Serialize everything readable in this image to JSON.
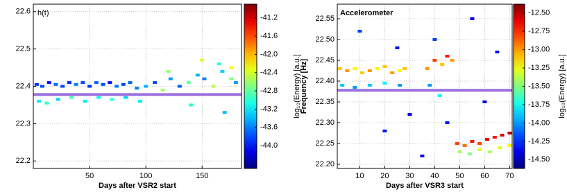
{
  "chart_data": [
    {
      "type": "scatter",
      "title": "h(t)",
      "xlabel": "Days after VSR2 start",
      "colorbar_label": "log₁₀(Energy) [a.u.]",
      "xlim": [
        0,
        185
      ],
      "xticks": [
        50,
        100,
        150
      ],
      "ylim": [
        22.18,
        22.62
      ],
      "yticks": [
        22.2,
        22.3,
        22.4,
        22.5,
        22.6
      ],
      "clim": [
        -44.5,
        -40.9
      ],
      "cticks": [
        -41.2,
        -41.6,
        {
          "value": -42.0,
          "label": "-42.0"
        },
        -42.4,
        -42.8,
        -43.2,
        -43.6,
        {
          "value": -44.0,
          "label": "-44.0"
        }
      ],
      "colormap": "jet",
      "grid": true,
      "hline": {
        "value": 22.378,
        "color": "#9b6fe0"
      },
      "series": [
        {
          "x": [
            3,
            8,
            14,
            20,
            26,
            32,
            38,
            44,
            50,
            56,
            62,
            68,
            74,
            80,
            86,
            5,
            12,
            22,
            34,
            46,
            58,
            70,
            82,
            92,
            100,
            108,
            115,
            122,
            130,
            138,
            146,
            152,
            160,
            168,
            176,
            180,
            120,
            150,
            165,
            176,
            95,
            140,
            170
          ],
          "y": [
            22.405,
            22.4,
            22.41,
            22.405,
            22.4,
            22.41,
            22.405,
            22.41,
            22.4,
            22.41,
            22.405,
            22.41,
            22.4,
            22.405,
            22.41,
            22.36,
            22.355,
            22.365,
            22.37,
            22.36,
            22.37,
            22.365,
            22.37,
            22.395,
            22.4,
            22.41,
            22.39,
            22.42,
            22.4,
            22.41,
            22.43,
            22.42,
            22.4,
            22.44,
            22.42,
            22.41,
            22.44,
            22.47,
            22.46,
            22.45,
            22.36,
            22.35,
            22.33
          ],
          "energy": [
            -43.9,
            -43.8,
            -44.0,
            -43.7,
            -43.8,
            -43.9,
            -43.6,
            -43.8,
            -43.9,
            -43.7,
            -43.8,
            -44.0,
            -43.6,
            -43.8,
            -43.7,
            -43.2,
            -43.0,
            -43.3,
            -42.9,
            -43.2,
            -43.1,
            -43.0,
            -43.3,
            -43.6,
            -43.4,
            -43.8,
            -42.6,
            -43.5,
            -43.7,
            -42.8,
            -43.4,
            -43.6,
            -42.5,
            -43.3,
            -42.7,
            -43.5,
            -42.6,
            -42.4,
            -43.0,
            -42.3,
            -43.2,
            -43.0,
            -43.4
          ]
        }
      ]
    },
    {
      "type": "scatter",
      "title": "Accelerometer",
      "xlabel": "Days after VSR3 start",
      "ylabel": "Frequency [Hz]",
      "colorbar_label": "log₁₀(Energy) [a.u.]",
      "xlim": [
        1,
        71
      ],
      "xticks": [
        10,
        20,
        30,
        40,
        50,
        60,
        70
      ],
      "ylim": [
        22.19,
        22.585
      ],
      "yticks": [
        {
          "value": 22.2,
          "label": "22.20"
        },
        22.25,
        {
          "value": 22.3,
          "label": "22.30"
        },
        22.35,
        {
          "value": 22.4,
          "label": "22.40"
        },
        22.45,
        {
          "value": 22.5,
          "label": "22.50"
        },
        22.55
      ],
      "clim": [
        -14.62,
        -12.38
      ],
      "cticks": [
        {
          "value": -12.5,
          "label": "-12.50"
        },
        -12.75,
        {
          "value": -13.0,
          "label": "-13.00"
        },
        -13.25,
        {
          "value": -13.5,
          "label": "-13.50"
        },
        -13.75,
        {
          "value": -14.0,
          "label": "-14.00"
        },
        -14.25,
        {
          "value": -14.5,
          "label": "-14.50"
        }
      ],
      "colormap": "jet",
      "grid": true,
      "hline": {
        "value": 22.378,
        "color": "#9b6fe0"
      },
      "series": [
        {
          "x": [
            2,
            5,
            8,
            11,
            14,
            17,
            20,
            23,
            26,
            28,
            3,
            8,
            14,
            20,
            26,
            37,
            40,
            43,
            45,
            47,
            38,
            42,
            49,
            52,
            55,
            58,
            61,
            64,
            67,
            70,
            50,
            54,
            58,
            62,
            66,
            70,
            10,
            25,
            40,
            55,
            65,
            30,
            45,
            60,
            20,
            35
          ],
          "y": [
            22.43,
            22.425,
            22.43,
            22.42,
            22.425,
            22.43,
            22.435,
            22.42,
            22.425,
            22.43,
            22.39,
            22.385,
            22.39,
            22.395,
            22.39,
            22.43,
            22.45,
            22.44,
            22.46,
            22.45,
            22.39,
            22.365,
            22.25,
            22.245,
            22.255,
            22.25,
            22.26,
            22.265,
            22.27,
            22.275,
            22.23,
            22.225,
            22.235,
            22.23,
            22.24,
            22.245,
            22.52,
            22.48,
            22.5,
            22.55,
            22.47,
            22.32,
            22.3,
            22.35,
            22.28,
            22.22
          ],
          "energy": [
            -13.1,
            -13.0,
            -13.2,
            -13.1,
            -13.0,
            -13.2,
            -13.1,
            -13.0,
            -13.2,
            -13.1,
            -13.9,
            -14.0,
            -13.9,
            -13.8,
            -14.0,
            -13.0,
            -12.8,
            -13.1,
            -12.7,
            -13.0,
            -14.0,
            -13.8,
            -12.8,
            -12.9,
            -12.7,
            -12.8,
            -12.6,
            -12.7,
            -12.6,
            -12.5,
            -13.4,
            -13.5,
            -13.3,
            -13.4,
            -13.3,
            -13.2,
            -14.2,
            -14.3,
            -14.2,
            -14.4,
            -14.3,
            -14.4,
            -14.3,
            -14.4,
            -14.3,
            -14.4
          ]
        }
      ]
    }
  ]
}
